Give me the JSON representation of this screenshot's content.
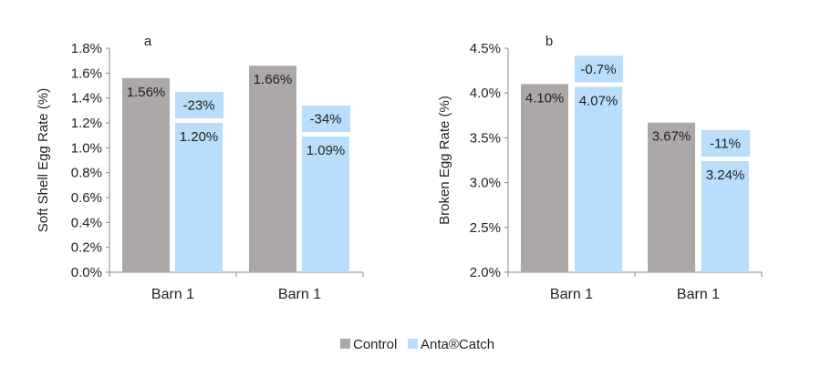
{
  "chart_data": [
    {
      "type": "bar",
      "panel_label": "a",
      "ylabel": "Soft Shell Egg Rate (%)",
      "xlabel": "",
      "categories": [
        "Barn 1",
        "Barn 1"
      ],
      "ylim": [
        0,
        1.8
      ],
      "yticks": [
        "0.0%",
        "0.2%",
        "0.4%",
        "0.6%",
        "0.8%",
        "1.0%",
        "1.2%",
        "1.4%",
        "1.6%",
        "1.8%"
      ],
      "series": [
        {
          "name": "Control",
          "color": "#aca8a7",
          "values": [
            1.56,
            1.66
          ],
          "labels": [
            "1.56%",
            "1.66%"
          ]
        },
        {
          "name": "Anta®Catch",
          "color": "#b9ddfa",
          "values": [
            1.2,
            1.09
          ],
          "labels": [
            "1.20%",
            "1.09%"
          ]
        }
      ],
      "change_labels": [
        "-23%",
        "-34%"
      ]
    },
    {
      "type": "bar",
      "panel_label": "b",
      "ylabel": "Broken Egg Rate (%)",
      "xlabel": "",
      "categories": [
        "Barn 1",
        "Barn 1"
      ],
      "ylim": [
        2.0,
        4.5
      ],
      "yticks": [
        "2.0%",
        "2.5%",
        "3.0%",
        "3.5%",
        "4.0%",
        "4.5%"
      ],
      "series": [
        {
          "name": "Control",
          "color": "#aca8a7",
          "values": [
            4.1,
            3.67
          ],
          "labels": [
            "4.10%",
            "3.67%"
          ]
        },
        {
          "name": "Anta®Catch",
          "color": "#b9ddfa",
          "values": [
            4.07,
            3.24
          ],
          "labels": [
            "4.07%",
            "3.24%"
          ]
        }
      ],
      "change_labels": [
        "-0.7%",
        "-11%"
      ]
    }
  ],
  "legend": {
    "placement": "bottom-center",
    "items": [
      {
        "label": "Control",
        "color": "#aca8a7"
      },
      {
        "label": "Anta®Catch",
        "color": "#b9ddfa"
      }
    ]
  }
}
